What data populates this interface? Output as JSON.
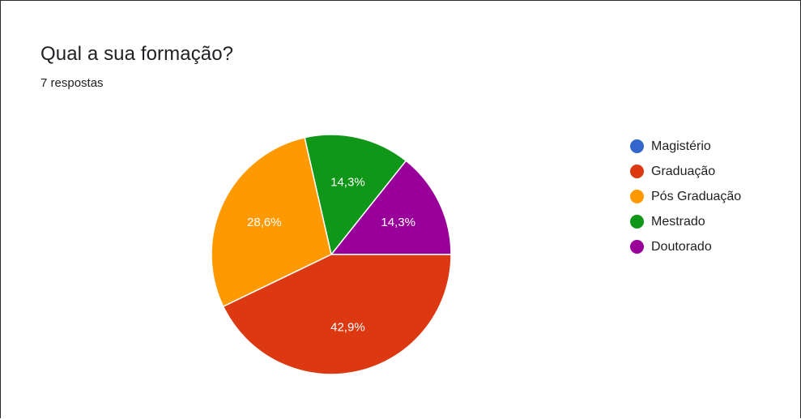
{
  "title": "Qual a sua formação?",
  "subtitle": "7 respostas",
  "chart_data": {
    "type": "pie",
    "title": "Qual a sua formação?",
    "categories": [
      "Magistério",
      "Graduação",
      "Pós Graduação",
      "Mestrado",
      "Doutorado"
    ],
    "values": [
      0,
      3,
      2,
      1,
      1
    ],
    "labels": [
      "",
      "42,9%",
      "28,6%",
      "14,3%",
      "14,3%"
    ],
    "colors": [
      "#3366cc",
      "#dc3912",
      "#ff9900",
      "#109618",
      "#990099"
    ],
    "legend_position": "right"
  }
}
